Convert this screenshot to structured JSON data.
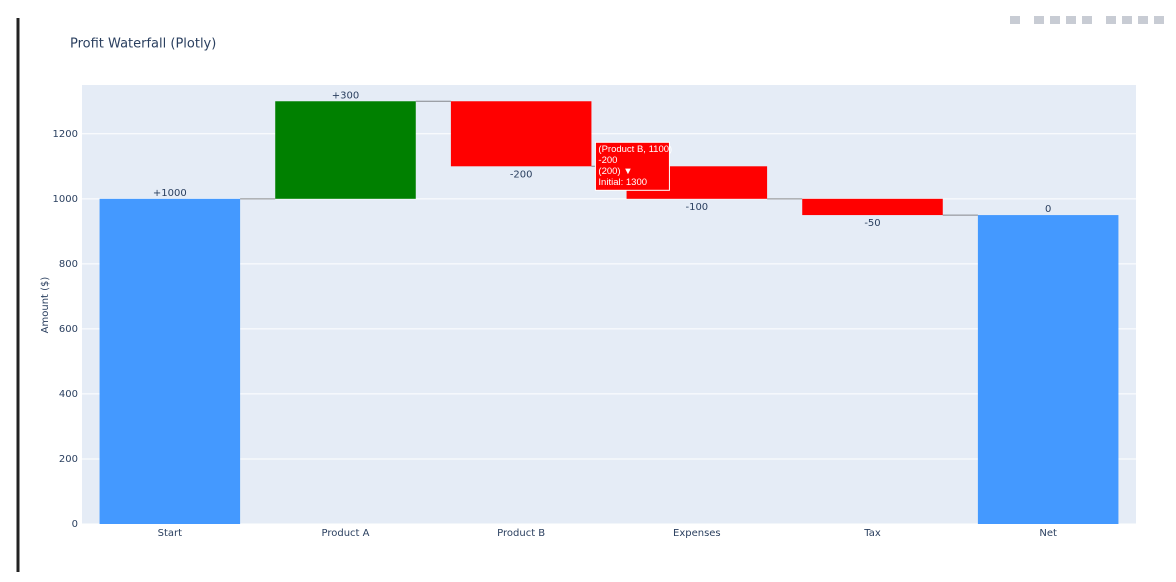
{
  "chart_data": {
    "type": "waterfall",
    "title": "Profit Waterfall (Plotly)",
    "y_label": "Amount ($)",
    "categories": [
      "Start",
      "Product A",
      "Product B",
      "Expenses",
      "Tax",
      "Net"
    ],
    "measures": [
      "absolute",
      "relative",
      "relative",
      "relative",
      "relative",
      "total"
    ],
    "values": [
      1000,
      300,
      -200,
      -100,
      -50,
      0
    ],
    "value_labels": [
      "+1000",
      "+300",
      "-200",
      "-100",
      "-50",
      "0"
    ],
    "colors": {
      "increasing": "#008000",
      "decreasing": "#ff0000",
      "totals": "#4499ff"
    },
    "ylim": [
      0,
      1350
    ],
    "yticks": [
      0,
      200,
      400,
      600,
      800,
      1000,
      1200
    ],
    "grid": true,
    "tooltip": {
      "category": 2,
      "lines": [
        "(Product B, 1100)",
        "-200",
        "(200) ▼",
        "Initial: 1300"
      ]
    }
  }
}
